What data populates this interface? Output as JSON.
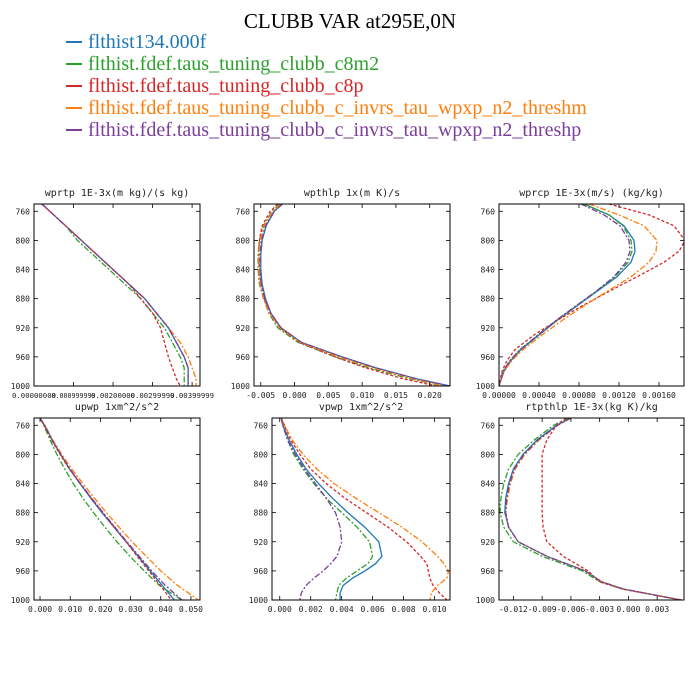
{
  "title": "CLUBB VAR at295E,0N",
  "legend": [
    {
      "label": "flthist134.000f",
      "color": "#1f77b4",
      "dash": ""
    },
    {
      "label": "flthist.fdef.taus_tuning_clubb_c8m2",
      "color": "#2ca02c",
      "dash": "6,2,2,2"
    },
    {
      "label": "flthist.fdef.taus_tuning_clubb_c8p",
      "color": "#d62728",
      "dash": "3,2"
    },
    {
      "label": "flthist.fdef.taus_tuning_clubb_c_invrs_tau_wpxp_n2_threshm",
      "color": "#ff7f0e",
      "dash": "6,2,2,2"
    },
    {
      "label": "flthist.fdef.taus_tuning_clubb_c_invrs_tau_wpxp_n2_threshp",
      "color": "#7b3f99",
      "dash": "6,2,2,2"
    }
  ],
  "chart_data": [
    {
      "type": "line",
      "title": "wprtp  1E-3x(m kg)/(s kg)",
      "xlim": [
        0.0,
        0.0042
      ],
      "ylim": [
        1000,
        750
      ],
      "ylabel": "",
      "xticks": [
        0.0,
        0.001,
        0.002,
        0.003,
        0.004
      ],
      "xticklabels": [
        "0.00000000",
        "0.000999999",
        "0.00200000",
        "0.00299999",
        "0.00399999"
      ],
      "yticks": [
        760,
        800,
        840,
        880,
        920,
        960,
        1000
      ],
      "y": [
        750,
        760,
        780,
        800,
        820,
        840,
        860,
        880,
        900,
        920,
        940,
        960,
        975,
        990,
        1000
      ],
      "series": [
        {
          "x": [
            0.0002,
            0.0004,
            0.0008,
            0.0012,
            0.0016,
            0.002,
            0.0024,
            0.0028,
            0.0031,
            0.0034,
            0.0036,
            0.0038,
            0.0039,
            0.0039,
            0.0039
          ]
        },
        {
          "x": [
            0.0002,
            0.0004,
            0.0008,
            0.0011,
            0.0015,
            0.0019,
            0.0023,
            0.0027,
            0.003,
            0.0033,
            0.0035,
            0.0037,
            0.0038,
            0.0038,
            0.0038
          ]
        },
        {
          "x": [
            0.0002,
            0.0004,
            0.0008,
            0.0012,
            0.0016,
            0.002,
            0.0024,
            0.0027,
            0.003,
            0.0032,
            0.0033,
            0.0034,
            0.0035,
            0.0036,
            0.0037
          ]
        },
        {
          "x": [
            0.0002,
            0.0004,
            0.0008,
            0.0012,
            0.0016,
            0.002,
            0.0024,
            0.0028,
            0.0031,
            0.0034,
            0.0037,
            0.0039,
            0.004,
            0.0041,
            0.0041
          ]
        },
        {
          "x": [
            0.0002,
            0.0004,
            0.0008,
            0.0012,
            0.0016,
            0.002,
            0.0024,
            0.0028,
            0.0031,
            0.0034,
            0.0036,
            0.0038,
            0.0039,
            0.0039,
            0.0039
          ]
        }
      ]
    },
    {
      "type": "line",
      "title": "wpthlp  1x(m K)/s",
      "xlim": [
        -0.006,
        0.023
      ],
      "ylim": [
        1000,
        750
      ],
      "xticks": [
        -0.005,
        0.0,
        0.005,
        0.01,
        0.015,
        0.02
      ],
      "xticklabels": [
        "-0.005",
        "0.000",
        "0.005",
        "0.010",
        "0.015",
        "0.020"
      ],
      "yticks": [
        760,
        800,
        840,
        880,
        920,
        960,
        1000
      ],
      "y": [
        750,
        760,
        780,
        800,
        820,
        840,
        860,
        880,
        900,
        920,
        940,
        960,
        975,
        990,
        1000
      ],
      "series": [
        {
          "x": [
            -0.0018,
            -0.003,
            -0.0042,
            -0.0048,
            -0.005,
            -0.005,
            -0.0048,
            -0.0043,
            -0.0035,
            -0.002,
            0.001,
            0.007,
            0.012,
            0.018,
            0.023
          ]
        },
        {
          "x": [
            -0.0022,
            -0.0033,
            -0.0046,
            -0.0052,
            -0.0054,
            -0.0054,
            -0.0052,
            -0.0046,
            -0.0038,
            -0.0025,
            0.0005,
            0.006,
            0.011,
            0.017,
            0.022
          ]
        },
        {
          "x": [
            -0.0025,
            -0.0036,
            -0.0048,
            -0.0052,
            -0.0053,
            -0.0052,
            -0.005,
            -0.0045,
            -0.0036,
            -0.0022,
            0.0007,
            0.006,
            0.0105,
            0.016,
            0.021
          ]
        },
        {
          "x": [
            -0.002,
            -0.0032,
            -0.0045,
            -0.0051,
            -0.0053,
            -0.0053,
            -0.0051,
            -0.0046,
            -0.0037,
            -0.0022,
            0.0008,
            0.0065,
            0.0115,
            0.0175,
            0.022
          ]
        },
        {
          "x": [
            -0.0018,
            -0.003,
            -0.0043,
            -0.0049,
            -0.0051,
            -0.0051,
            -0.0049,
            -0.0044,
            -0.0035,
            -0.002,
            0.001,
            0.007,
            0.012,
            0.018,
            0.023
          ]
        }
      ]
    },
    {
      "type": "line",
      "title": "wprcp  1E-3x(m/s) (kg/kg)",
      "xlim": [
        0.0,
        0.00185
      ],
      "ylim": [
        1000,
        750
      ],
      "xticks": [
        0.0,
        0.0004,
        0.0008,
        0.0012,
        0.0016
      ],
      "xticklabels": [
        "0.00000",
        "0.00040",
        "0.00080",
        "0.00120",
        "0.00160"
      ],
      "yticks": [
        760,
        800,
        840,
        880,
        920,
        960,
        1000
      ],
      "y": [
        750,
        765,
        780,
        800,
        815,
        830,
        850,
        870,
        890,
        910,
        930,
        950,
        965,
        980,
        1000
      ],
      "series": [
        {
          "x": [
            0.00085,
            0.0011,
            0.00125,
            0.00135,
            0.00136,
            0.00132,
            0.00118,
            0.00098,
            0.00078,
            0.00058,
            0.0004,
            0.00022,
            0.00012,
            5e-05,
            0.0
          ]
        },
        {
          "x": [
            0.00085,
            0.0011,
            0.00124,
            0.00132,
            0.00133,
            0.00129,
            0.00116,
            0.00097,
            0.00077,
            0.00057,
            0.00039,
            0.00021,
            0.00011,
            4e-05,
            0.0
          ]
        },
        {
          "x": [
            0.0011,
            0.0015,
            0.00175,
            0.00186,
            0.0018,
            0.00165,
            0.00138,
            0.0011,
            0.00083,
            0.00058,
            0.00035,
            0.00016,
            8e-05,
            3e-05,
            0.0
          ]
        },
        {
          "x": [
            0.0009,
            0.0012,
            0.00145,
            0.00158,
            0.00157,
            0.0015,
            0.00132,
            0.00108,
            0.00085,
            0.00063,
            0.00043,
            0.00024,
            0.00013,
            5e-05,
            0.0
          ]
        },
        {
          "x": [
            0.00082,
            0.00105,
            0.00121,
            0.0013,
            0.00131,
            0.00127,
            0.00115,
            0.00097,
            0.00077,
            0.00057,
            0.00039,
            0.00021,
            0.00011,
            4e-05,
            0.0
          ]
        }
      ]
    },
    {
      "type": "line",
      "title": "upwp  1xm^2/s^2",
      "xlim": [
        -0.002,
        0.053
      ],
      "ylim": [
        1000,
        750
      ],
      "xticks": [
        0.0,
        0.01,
        0.02,
        0.03,
        0.04,
        0.05
      ],
      "xticklabels": [
        "0.000",
        "0.010",
        "0.020",
        "0.030",
        "0.040",
        "0.050"
      ],
      "yticks": [
        760,
        800,
        840,
        880,
        920,
        960,
        1000
      ],
      "y": [
        750,
        760,
        780,
        800,
        820,
        840,
        860,
        880,
        900,
        920,
        940,
        960,
        980,
        1000
      ],
      "series": [
        {
          "x": [
            0.0,
            0.0015,
            0.004,
            0.0068,
            0.0098,
            0.0132,
            0.0168,
            0.0205,
            0.0245,
            0.0285,
            0.0325,
            0.0365,
            0.0405,
            0.0445
          ]
        },
        {
          "x": [
            0.0,
            0.0012,
            0.0033,
            0.0056,
            0.0082,
            0.011,
            0.0142,
            0.0177,
            0.0215,
            0.0255,
            0.0298,
            0.0345,
            0.0395,
            0.047
          ]
        },
        {
          "x": [
            0.0,
            0.0014,
            0.0038,
            0.0066,
            0.0097,
            0.0133,
            0.017,
            0.0208,
            0.0246,
            0.0285,
            0.0322,
            0.036,
            0.0398,
            0.0435
          ]
        },
        {
          "x": [
            0.0,
            0.0016,
            0.0042,
            0.0072,
            0.0105,
            0.0142,
            0.018,
            0.022,
            0.0262,
            0.0305,
            0.0352,
            0.04,
            0.0455,
            0.0525
          ]
        },
        {
          "x": [
            0.0,
            0.0015,
            0.004,
            0.0068,
            0.0099,
            0.0134,
            0.0171,
            0.0209,
            0.0248,
            0.0288,
            0.0329,
            0.037,
            0.0415,
            0.047
          ]
        }
      ]
    },
    {
      "type": "line",
      "title": "vpwp  1xm^2/s^2",
      "xlim": [
        -0.0005,
        0.011
      ],
      "ylim": [
        1000,
        750
      ],
      "xticks": [
        0.0,
        0.002,
        0.004,
        0.006,
        0.008,
        0.01
      ],
      "xticklabels": [
        "0.000",
        "0.002",
        "0.004",
        "0.006",
        "0.008",
        "0.010"
      ],
      "yticks": [
        760,
        800,
        840,
        880,
        920,
        960,
        1000
      ],
      "y": [
        750,
        760,
        780,
        800,
        820,
        840,
        860,
        880,
        900,
        920,
        940,
        950,
        960,
        970,
        980,
        990,
        1000
      ],
      "series": [
        {
          "x": [
            0.0001,
            0.0002,
            0.0006,
            0.0011,
            0.0017,
            0.0025,
            0.0034,
            0.0044,
            0.0055,
            0.0064,
            0.0066,
            0.0062,
            0.0055,
            0.0047,
            0.0041,
            0.0039,
            0.0039
          ]
        },
        {
          "x": [
            0.0001,
            0.0002,
            0.0005,
            0.0009,
            0.0015,
            0.0022,
            0.003,
            0.004,
            0.005,
            0.0058,
            0.006,
            0.0057,
            0.005,
            0.0043,
            0.0038,
            0.0037,
            0.0036
          ]
        },
        {
          "x": [
            0.0001,
            0.0003,
            0.0007,
            0.0013,
            0.002,
            0.003,
            0.0042,
            0.0056,
            0.007,
            0.0082,
            0.0091,
            0.0095,
            0.0096,
            0.0097,
            0.0099,
            0.0103,
            0.0108
          ]
        },
        {
          "x": [
            0.0001,
            0.0003,
            0.0008,
            0.0015,
            0.0024,
            0.0035,
            0.0049,
            0.0064,
            0.0079,
            0.0092,
            0.0102,
            0.0106,
            0.0109,
            0.0108,
            0.0102,
            0.0098,
            0.0097
          ]
        },
        {
          "x": [
            0.0001,
            0.0002,
            0.0005,
            0.001,
            0.0016,
            0.0023,
            0.003,
            0.0036,
            0.0039,
            0.004,
            0.0037,
            0.0033,
            0.0028,
            0.0022,
            0.0017,
            0.0014,
            0.0013
          ]
        }
      ]
    },
    {
      "type": "line",
      "title": "rtpthlp  1E-3x(kg K)/kg",
      "xlim": [
        -0.0135,
        0.0058
      ],
      "ylim": [
        1000,
        750
      ],
      "xticks": [
        -0.012,
        -0.009,
        -0.006,
        -0.003,
        0.0,
        0.003
      ],
      "xticklabels": [
        "-0.012",
        "-0.009",
        "-0.006",
        "-0.003",
        "0.000",
        "0.003"
      ],
      "yticks": [
        760,
        800,
        840,
        880,
        920,
        960,
        1000
      ],
      "y": [
        750,
        760,
        780,
        800,
        820,
        840,
        860,
        880,
        900,
        920,
        940,
        960,
        975,
        985,
        1000
      ],
      "series": [
        {
          "x": [
            -0.006,
            -0.0075,
            -0.0095,
            -0.011,
            -0.012,
            -0.0125,
            -0.0128,
            -0.0129,
            -0.0125,
            -0.0115,
            -0.0085,
            -0.0045,
            -0.0028,
            -0.0005,
            0.0055
          ]
        },
        {
          "x": [
            -0.0062,
            -0.0078,
            -0.0098,
            -0.0115,
            -0.0125,
            -0.013,
            -0.0133,
            -0.0134,
            -0.013,
            -0.012,
            -0.009,
            -0.0048,
            -0.003,
            -0.0006,
            0.0055
          ]
        },
        {
          "x": [
            -0.0065,
            -0.0075,
            -0.0085,
            -0.009,
            -0.009,
            -0.009,
            -0.009,
            -0.009,
            -0.0089,
            -0.0085,
            -0.0068,
            -0.0042,
            -0.003,
            -0.0006,
            0.0055
          ]
        },
        {
          "x": [
            -0.006,
            -0.0074,
            -0.0093,
            -0.0108,
            -0.0118,
            -0.0123,
            -0.0126,
            -0.0128,
            -0.0125,
            -0.0115,
            -0.0085,
            -0.0045,
            -0.0028,
            -0.0005,
            0.0055
          ]
        },
        {
          "x": [
            -0.006,
            -0.0074,
            -0.0094,
            -0.0109,
            -0.0119,
            -0.0124,
            -0.0127,
            -0.0128,
            -0.0125,
            -0.0115,
            -0.0085,
            -0.0045,
            -0.0028,
            -0.0005,
            0.0055
          ]
        }
      ]
    }
  ]
}
